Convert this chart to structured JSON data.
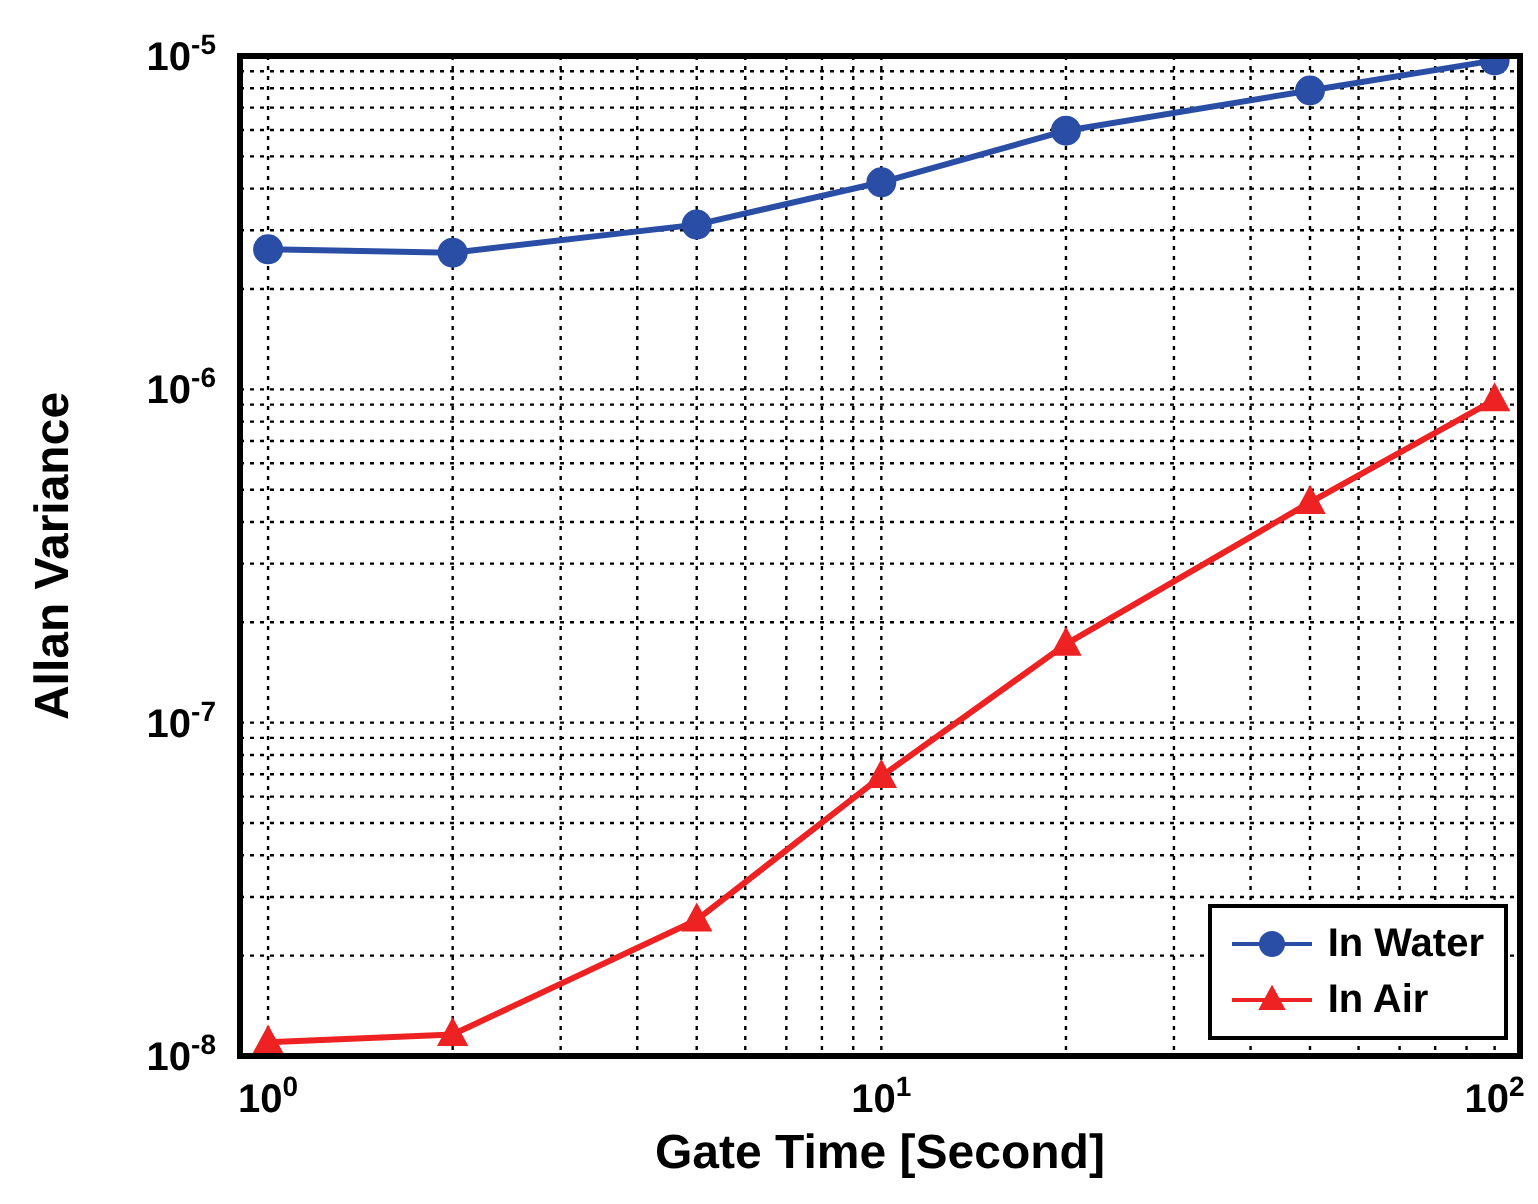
{
  "chart_data": {
    "type": "line",
    "xlabel": "Gate Time [Second]",
    "ylabel": "Allan Variance",
    "log": "xy",
    "grid": true,
    "legend": "bottom right",
    "line_style": "solid",
    "x": [
      1,
      2,
      5,
      10,
      20,
      50,
      100
    ],
    "xlim": [
      0.9,
      110
    ],
    "xticks": [
      {
        "value": 1,
        "label": "10$^{0}$"
      },
      {
        "value": 2,
        "label": null
      },
      {
        "value": 3,
        "label": null
      },
      {
        "value": 4,
        "label": null
      },
      {
        "value": 5,
        "label": null
      },
      {
        "value": 6,
        "label": null
      },
      {
        "value": 7,
        "label": null
      },
      {
        "value": 8,
        "label": null
      },
      {
        "value": 9,
        "label": null
      },
      {
        "value": 10,
        "label": "10$^{1}$"
      },
      {
        "value": 20,
        "label": null
      },
      {
        "value": 30,
        "label": null
      },
      {
        "value": 40,
        "label": null
      },
      {
        "value": 50,
        "label": null
      },
      {
        "value": 60,
        "label": null
      },
      {
        "value": 70,
        "label": null
      },
      {
        "value": 80,
        "label": null
      },
      {
        "value": 90,
        "label": null
      },
      {
        "value": 100,
        "label": "10$^{2}$"
      }
    ],
    "ylim": [
      1e-08,
      1e-05
    ],
    "yticks": [
      {
        "value": 1e-08,
        "label": "10$^{-8}$"
      },
      {
        "value": 2e-08,
        "label": null
      },
      {
        "value": 3e-08,
        "label": null
      },
      {
        "value": 4e-08,
        "label": null
      },
      {
        "value": 5e-08,
        "label": null
      },
      {
        "value": 6e-08,
        "label": null
      },
      {
        "value": 7e-08,
        "label": null
      },
      {
        "value": 8e-08,
        "label": null
      },
      {
        "value": 9e-08,
        "label": null
      },
      {
        "value": 1e-07,
        "label": "10$^{-7}$"
      },
      {
        "value": 2e-07,
        "label": null
      },
      {
        "value": 3e-07,
        "label": null
      },
      {
        "value": 4e-07,
        "label": null
      },
      {
        "value": 5e-07,
        "label": null
      },
      {
        "value": 6e-07,
        "label": null
      },
      {
        "value": 7e-07,
        "label": null
      },
      {
        "value": 8e-07,
        "label": null
      },
      {
        "value": 9e-07,
        "label": null
      },
      {
        "value": 1e-06,
        "label": "10$^{-6}$"
      },
      {
        "value": 2e-06,
        "label": null
      },
      {
        "value": 3e-06,
        "label": null
      },
      {
        "value": 4e-06,
        "label": null
      },
      {
        "value": 5e-06,
        "label": null
      },
      {
        "value": 6e-06,
        "label": null
      },
      {
        "value": 7e-06,
        "label": null
      },
      {
        "value": 8e-06,
        "label": null
      },
      {
        "value": 9e-06,
        "label": null
      },
      {
        "value": 1e-05,
        "label": "10$^{-5}$"
      }
    ],
    "series": [
      {
        "name": "In Water",
        "color": "#2a4ea6",
        "marker": "circle",
        "values": [
          2.63e-06,
          2.57e-06,
          3.12e-06,
          4.18e-06,
          5.97e-06,
          7.88e-06,
          9.7e-06
        ]
      },
      {
        "name": "In Air",
        "color": "#ee2222",
        "marker": "triangle",
        "values": [
          1.1e-08,
          1.16e-08,
          2.56e-08,
          6.9e-08,
          1.72e-07,
          4.58e-07,
          9.3e-07
        ]
      }
    ]
  }
}
